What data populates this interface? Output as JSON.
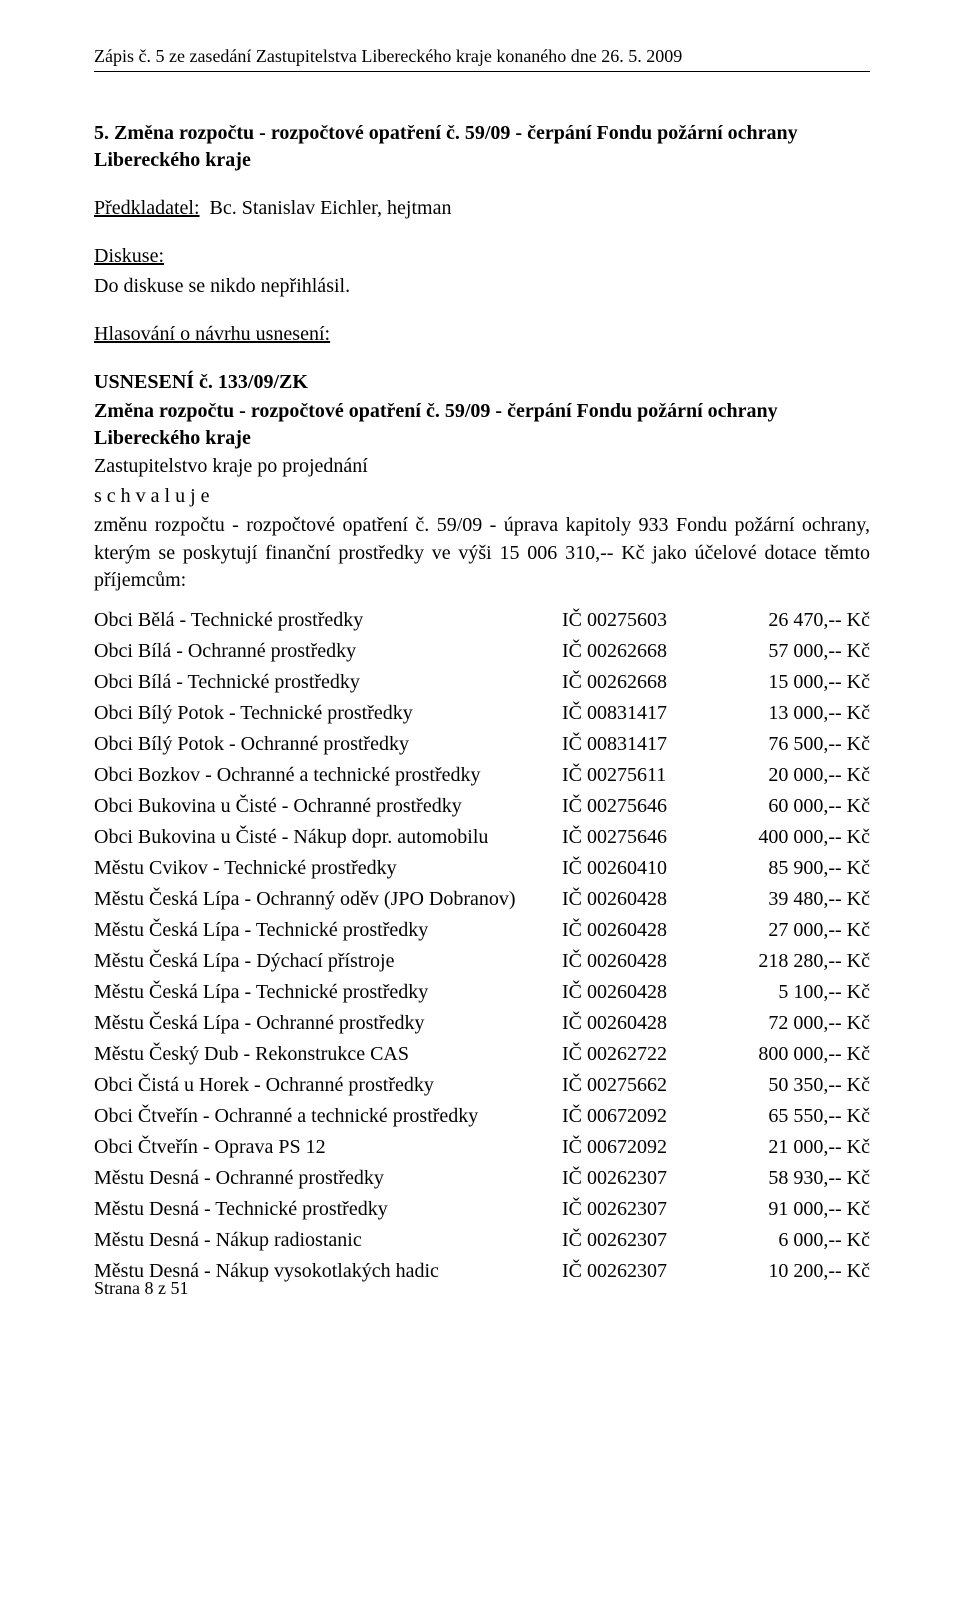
{
  "header": {
    "text": "Zápis č. 5 ze zasedání Zastupitelstva Libereckého kraje konaného dne 26. 5. 2009"
  },
  "section": {
    "title": "5. Změna rozpočtu - rozpočtové opatření č. 59/09 - čerpání Fondu požární ochrany Libereckého kraje",
    "predkladatel_label": "Předkladatel:",
    "predkladatel_value": "Bc. Stanislav Eichler, hejtman",
    "diskuse_label": "Diskuse:",
    "diskuse_text": "Do diskuse se nikdo nepřihlásil.",
    "hlasovani_label": "Hlasování o návrhu usnesení:",
    "usneseni_label": "USNESENÍ č. 133/09/ZK",
    "usneseni_title": "Změna rozpočtu - rozpočtové opatření č. 59/09 - čerpání Fondu požární ochrany Libereckého kraje",
    "projednani": "Zastupitelstvo kraje po projednání",
    "schvaluje": "s c h v a l u j e",
    "body": "změnu rozpočtu - rozpočtové opatření č. 59/09 - úprava kapitoly 933 Fondu požární ochrany, kterým se poskytují finanční prostředky ve výši 15 006 310,-- Kč jako účelové dotace těmto příjemcům:"
  },
  "rows": [
    {
      "name": "Obci Bělá - Technické prostředky",
      "ic": "IČ 00275603",
      "amount": "26 470,-- Kč"
    },
    {
      "name": "Obci Bílá - Ochranné prostředky",
      "ic": "IČ 00262668",
      "amount": "57 000,-- Kč"
    },
    {
      "name": "Obci Bílá - Technické prostředky",
      "ic": "IČ 00262668",
      "amount": "15 000,-- Kč"
    },
    {
      "name": "Obci Bílý Potok - Technické prostředky",
      "ic": "IČ 00831417",
      "amount": "13 000,-- Kč"
    },
    {
      "name": "Obci Bílý Potok - Ochranné prostředky",
      "ic": "IČ 00831417",
      "amount": "76 500,-- Kč"
    },
    {
      "name": "Obci Bozkov - Ochranné a technické prostředky",
      "ic": "IČ 00275611",
      "amount": "20 000,-- Kč"
    },
    {
      "name": "Obci Bukovina u Čisté - Ochranné prostředky",
      "ic": "IČ 00275646",
      "amount": "60 000,-- Kč"
    },
    {
      "name": "Obci Bukovina u Čisté - Nákup dopr. automobilu",
      "ic": "IČ 00275646",
      "amount": "400 000,-- Kč"
    },
    {
      "name": "Městu Cvikov - Technické prostředky",
      "ic": "IČ 00260410",
      "amount": "85 900,-- Kč"
    },
    {
      "name": "Městu Česká Lípa - Ochranný oděv (JPO Dobranov)",
      "ic": "IČ 00260428",
      "amount": "39 480,-- Kč"
    },
    {
      "name": "Městu Česká Lípa - Technické prostředky",
      "ic": "IČ 00260428",
      "amount": "27 000,-- Kč"
    },
    {
      "name": "Městu Česká Lípa - Dýchací přístroje",
      "ic": "IČ 00260428",
      "amount": "218 280,-- Kč"
    },
    {
      "name": "Městu Česká Lípa - Technické prostředky",
      "ic": "IČ 00260428",
      "amount": "5 100,-- Kč"
    },
    {
      "name": "Městu Česká Lípa - Ochranné prostředky",
      "ic": "IČ 00260428",
      "amount": "72 000,-- Kč"
    },
    {
      "name": "Městu Český Dub - Rekonstrukce CAS",
      "ic": "IČ 00262722",
      "amount": "800 000,-- Kč"
    },
    {
      "name": "Obci Čistá u Horek - Ochranné prostředky",
      "ic": "IČ 00275662",
      "amount": "50 350,-- Kč"
    },
    {
      "name": "Obci Čtveřín - Ochranné a technické prostředky",
      "ic": "IČ 00672092",
      "amount": "65 550,-- Kč"
    },
    {
      "name": "Obci Čtveřín - Oprava PS 12",
      "ic": "IČ 00672092",
      "amount": "21 000,-- Kč"
    },
    {
      "name": "Městu Desná - Ochranné prostředky",
      "ic": "IČ 00262307",
      "amount": "58 930,-- Kč"
    },
    {
      "name": "Městu Desná - Technické prostředky",
      "ic": "IČ 00262307",
      "amount": "91 000,-- Kč"
    },
    {
      "name": "Městu Desná - Nákup radiostanic",
      "ic": "IČ 00262307",
      "amount": "6 000,-- Kč"
    },
    {
      "name": "Městu Desná - Nákup vysokotlakých hadic",
      "ic": "IČ 00262307",
      "amount": "10 200,-- Kč"
    }
  ],
  "footer": {
    "text": "Strana 8 z 51"
  }
}
